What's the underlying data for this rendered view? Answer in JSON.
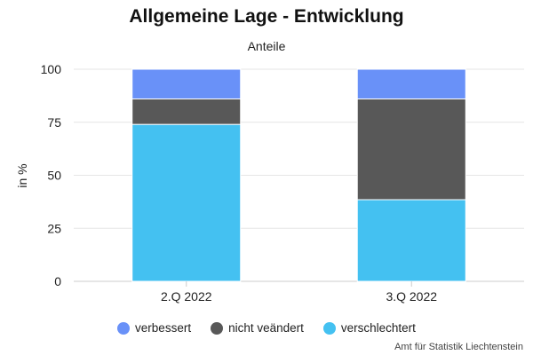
{
  "chart_data": {
    "type": "bar",
    "stacked": true,
    "title": "Allgemeine Lage - Entwicklung",
    "subtitle": "Anteile",
    "ylabel": "in %",
    "xlabel": "",
    "ylim": [
      0,
      100
    ],
    "yticks": [
      "0",
      "25",
      "50",
      "75",
      "100"
    ],
    "categories": [
      "2.Q 2022",
      "3.Q 2022"
    ],
    "series": [
      {
        "name": "verschlechtert",
        "values": [
          74,
          38.5
        ],
        "color": "#44C1F1"
      },
      {
        "name": "nicht veändert",
        "values": [
          12,
          47.5
        ],
        "color": "#585858"
      },
      {
        "name": "verbessert",
        "values": [
          14,
          14
        ],
        "color": "#6991F8"
      }
    ],
    "legend_order": [
      "verbessert",
      "nicht veändert",
      "verschlechtert"
    ],
    "legend_position": "bottom",
    "grid": true
  },
  "credit": "Amt für Statistik Liechtenstein"
}
